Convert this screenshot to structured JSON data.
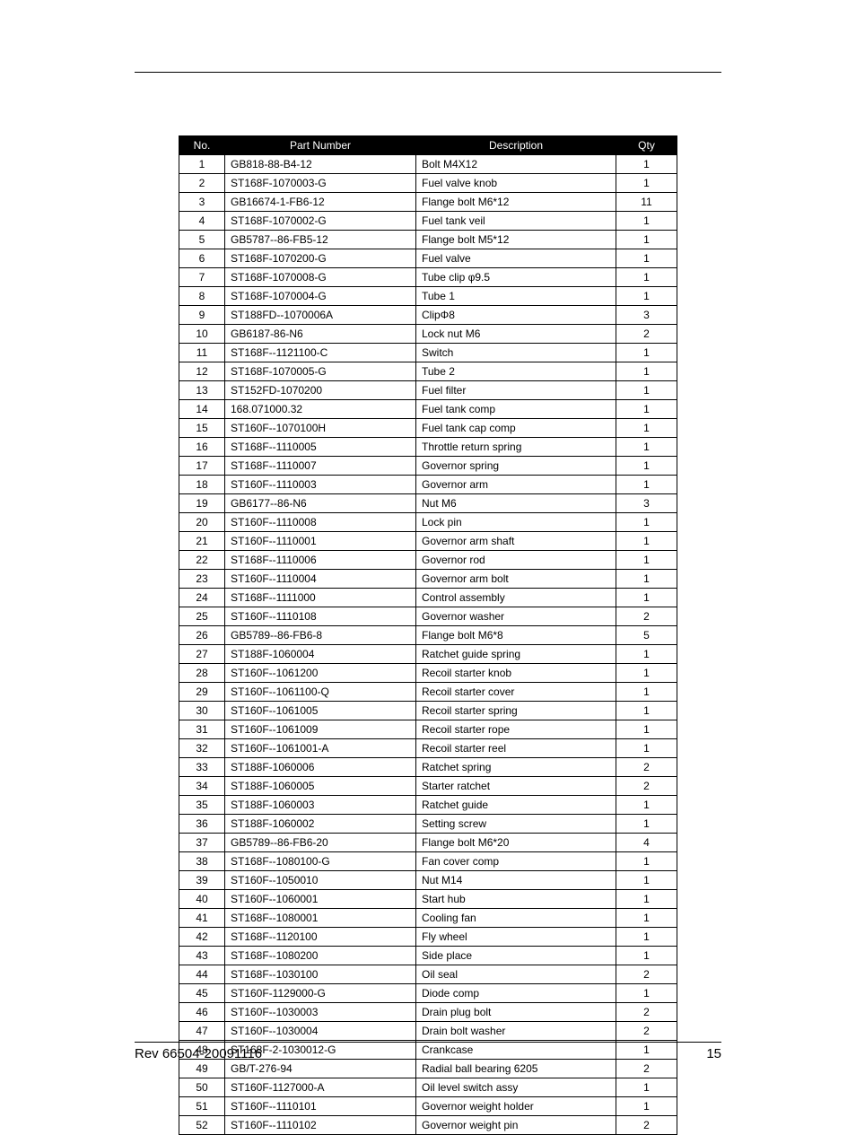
{
  "table": {
    "headers": {
      "no": "No.",
      "part": "Part Number",
      "desc": "Description",
      "qty": "Qty"
    },
    "rows": [
      {
        "no": "1",
        "part": "GB818-88-B4-12",
        "desc": "Bolt M4X12",
        "qty": "1"
      },
      {
        "no": "2",
        "part": "ST168F-1070003-G",
        "desc": "Fuel valve knob",
        "qty": "1"
      },
      {
        "no": "3",
        "part": "GB16674-1-FB6-12",
        "desc": "Flange bolt M6*12",
        "qty": "11"
      },
      {
        "no": "4",
        "part": "ST168F-1070002-G",
        "desc": "Fuel tank veil",
        "qty": "1"
      },
      {
        "no": "5",
        "part": "GB5787--86-FB5-12",
        "desc": "Flange bolt M5*12",
        "qty": "1"
      },
      {
        "no": "6",
        "part": "ST168F-1070200-G",
        "desc": "Fuel valve",
        "qty": "1"
      },
      {
        "no": "7",
        "part": "ST168F-1070008-G",
        "desc": "Tube clip φ9.5",
        "qty": "1"
      },
      {
        "no": "8",
        "part": "ST168F-1070004-G",
        "desc": "Tube 1",
        "qty": "1"
      },
      {
        "no": "9",
        "part": "ST188FD--1070006A",
        "desc": "ClipΦ8",
        "qty": "3"
      },
      {
        "no": "10",
        "part": "GB6187-86-N6",
        "desc": "Lock nut M6",
        "qty": "2"
      },
      {
        "no": "11",
        "part": "ST168F--1121100-C",
        "desc": "Switch",
        "qty": "1"
      },
      {
        "no": "12",
        "part": "ST168F-1070005-G",
        "desc": "Tube 2",
        "qty": "1"
      },
      {
        "no": "13",
        "part": "ST152FD-1070200",
        "desc": "Fuel filter",
        "qty": "1"
      },
      {
        "no": "14",
        "part": "168.071000.32",
        "desc": "Fuel tank comp",
        "qty": "1"
      },
      {
        "no": "15",
        "part": "ST160F--1070100H",
        "desc": "Fuel tank cap comp",
        "qty": "1"
      },
      {
        "no": "16",
        "part": "ST168F--1110005",
        "desc": "Throttle return spring",
        "qty": "1"
      },
      {
        "no": "17",
        "part": "ST168F--1110007",
        "desc": "Governor spring",
        "qty": "1"
      },
      {
        "no": "18",
        "part": "ST160F--1110003",
        "desc": "Governor arm",
        "qty": "1"
      },
      {
        "no": "19",
        "part": "GB6177--86-N6",
        "desc": "Nut M6",
        "qty": "3"
      },
      {
        "no": "20",
        "part": "ST160F--1110008",
        "desc": "Lock pin",
        "qty": "1"
      },
      {
        "no": "21",
        "part": "ST160F--1110001",
        "desc": "Governor arm shaft",
        "qty": "1"
      },
      {
        "no": "22",
        "part": "ST168F--1110006",
        "desc": "Governor rod",
        "qty": "1"
      },
      {
        "no": "23",
        "part": "ST160F--1110004",
        "desc": "Governor arm bolt",
        "qty": "1"
      },
      {
        "no": "24",
        "part": "ST168F--1111000",
        "desc": "Control assembly",
        "qty": "1"
      },
      {
        "no": "25",
        "part": "ST160F--1110108",
        "desc": "Governor washer",
        "qty": "2"
      },
      {
        "no": "26",
        "part": "GB5789--86-FB6-8",
        "desc": "Flange bolt M6*8",
        "qty": "5"
      },
      {
        "no": "27",
        "part": "ST188F-1060004",
        "desc": "Ratchet guide spring",
        "qty": "1"
      },
      {
        "no": "28",
        "part": "ST160F--1061200",
        "desc": "Recoil starter knob",
        "qty": "1"
      },
      {
        "no": "29",
        "part": "ST160F--1061100-Q",
        "desc": "Recoil starter cover",
        "qty": "1"
      },
      {
        "no": "30",
        "part": "ST160F--1061005",
        "desc": "Recoil starter spring",
        "qty": "1"
      },
      {
        "no": "31",
        "part": "ST160F--1061009",
        "desc": "Recoil starter rope",
        "qty": "1"
      },
      {
        "no": "32",
        "part": "ST160F--1061001-A",
        "desc": "Recoil starter reel",
        "qty": "1"
      },
      {
        "no": "33",
        "part": "ST188F-1060006",
        "desc": "Ratchet spring",
        "qty": "2"
      },
      {
        "no": "34",
        "part": "ST188F-1060005",
        "desc": "Starter ratchet",
        "qty": "2"
      },
      {
        "no": "35",
        "part": "ST188F-1060003",
        "desc": "Ratchet guide",
        "qty": "1"
      },
      {
        "no": "36",
        "part": "ST188F-1060002",
        "desc": "Setting screw",
        "qty": "1"
      },
      {
        "no": "37",
        "part": "GB5789--86-FB6-20",
        "desc": "Flange bolt M6*20",
        "qty": "4"
      },
      {
        "no": "38",
        "part": "ST168F--1080100-G",
        "desc": "Fan cover comp",
        "qty": "1"
      },
      {
        "no": "39",
        "part": "ST160F--1050010",
        "desc": "Nut M14",
        "qty": "1"
      },
      {
        "no": "40",
        "part": "ST160F--1060001",
        "desc": "Start hub",
        "qty": "1"
      },
      {
        "no": "41",
        "part": "ST168F--1080001",
        "desc": "Cooling fan",
        "qty": "1"
      },
      {
        "no": "42",
        "part": "ST168F--1120100",
        "desc": "Fly wheel",
        "qty": "1"
      },
      {
        "no": "43",
        "part": "ST168F--1080200",
        "desc": "Side place",
        "qty": "1"
      },
      {
        "no": "44",
        "part": "ST168F--1030100",
        "desc": "Oil seal",
        "qty": "2"
      },
      {
        "no": "45",
        "part": "ST160F-1129000-G",
        "desc": "Diode comp",
        "qty": "1"
      },
      {
        "no": "46",
        "part": "ST160F--1030003",
        "desc": "Drain plug bolt",
        "qty": "2"
      },
      {
        "no": "47",
        "part": "ST160F--1030004",
        "desc": "Drain bolt washer",
        "qty": "2"
      },
      {
        "no": "48",
        "part": "ST168F-2-1030012-G",
        "desc": "Crankcase",
        "qty": "1"
      },
      {
        "no": "49",
        "part": "GB/T-276-94",
        "desc": "Radial ball bearing 6205",
        "qty": "2"
      },
      {
        "no": "50",
        "part": "ST160F-1127000-A",
        "desc": "Oil level switch assy",
        "qty": "1"
      },
      {
        "no": "51",
        "part": "ST160F--1110101",
        "desc": "Governor weight holder",
        "qty": "1"
      },
      {
        "no": "52",
        "part": "ST160F--1110102",
        "desc": "Governor weight pin",
        "qty": "2"
      }
    ]
  },
  "footer": {
    "rev": "Rev 66504-20091116",
    "page": "15"
  }
}
